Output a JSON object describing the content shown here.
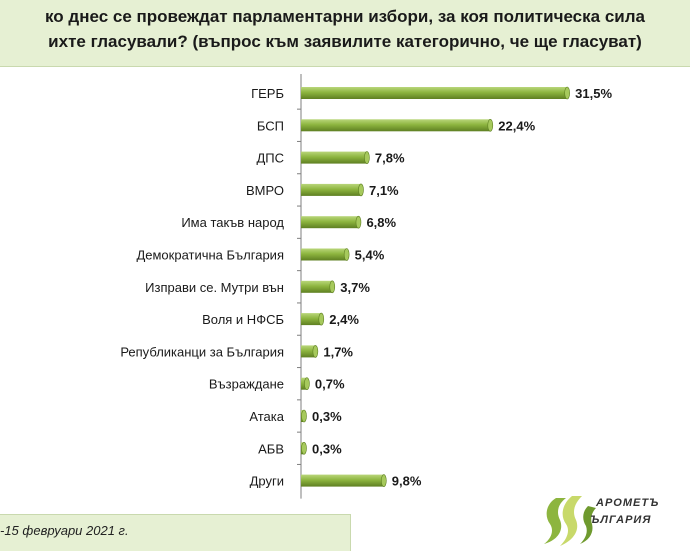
{
  "header": {
    "line1": "ко днес се провеждат парламентарни избори, за коя политическа сила",
    "line2": "ихте гласували? (въпрос към заявилите категорично, че ще гласуват)"
  },
  "footer": {
    "date_text": "-15 февруари 2021 г."
  },
  "logo": {
    "line1": "АРОМЕТЪ",
    "line2": "ЪЛГАРИЯ"
  },
  "colors": {
    "bar": "#8db53f",
    "bar_dark": "#5e7f22",
    "header_bg": "#e6f0d3",
    "axis": "#7f7f7f"
  },
  "chart_data": {
    "type": "bar",
    "orientation": "horizontal",
    "categories": [
      "ГЕРБ",
      "БСП",
      "ДПС",
      "ВМРО",
      "Има такъв народ",
      "Демократична България",
      "Изправи се. Мутри вън",
      "Воля и НФСБ",
      "Републиканци за България",
      "Възраждане",
      "Атака",
      "АБВ",
      "Други"
    ],
    "values": [
      31.5,
      22.4,
      7.8,
      7.1,
      6.8,
      5.4,
      3.7,
      2.4,
      1.7,
      0.7,
      0.3,
      0.3,
      9.8
    ],
    "data_labels": [
      "31,5%",
      "22,4%",
      "7,8%",
      "7,1%",
      "6,8%",
      "5,4%",
      "3,7%",
      "2,4%",
      "1,7%",
      "0,7%",
      "0,3%",
      "0,3%",
      "9,8%"
    ],
    "grid": false,
    "legend": "none"
  }
}
